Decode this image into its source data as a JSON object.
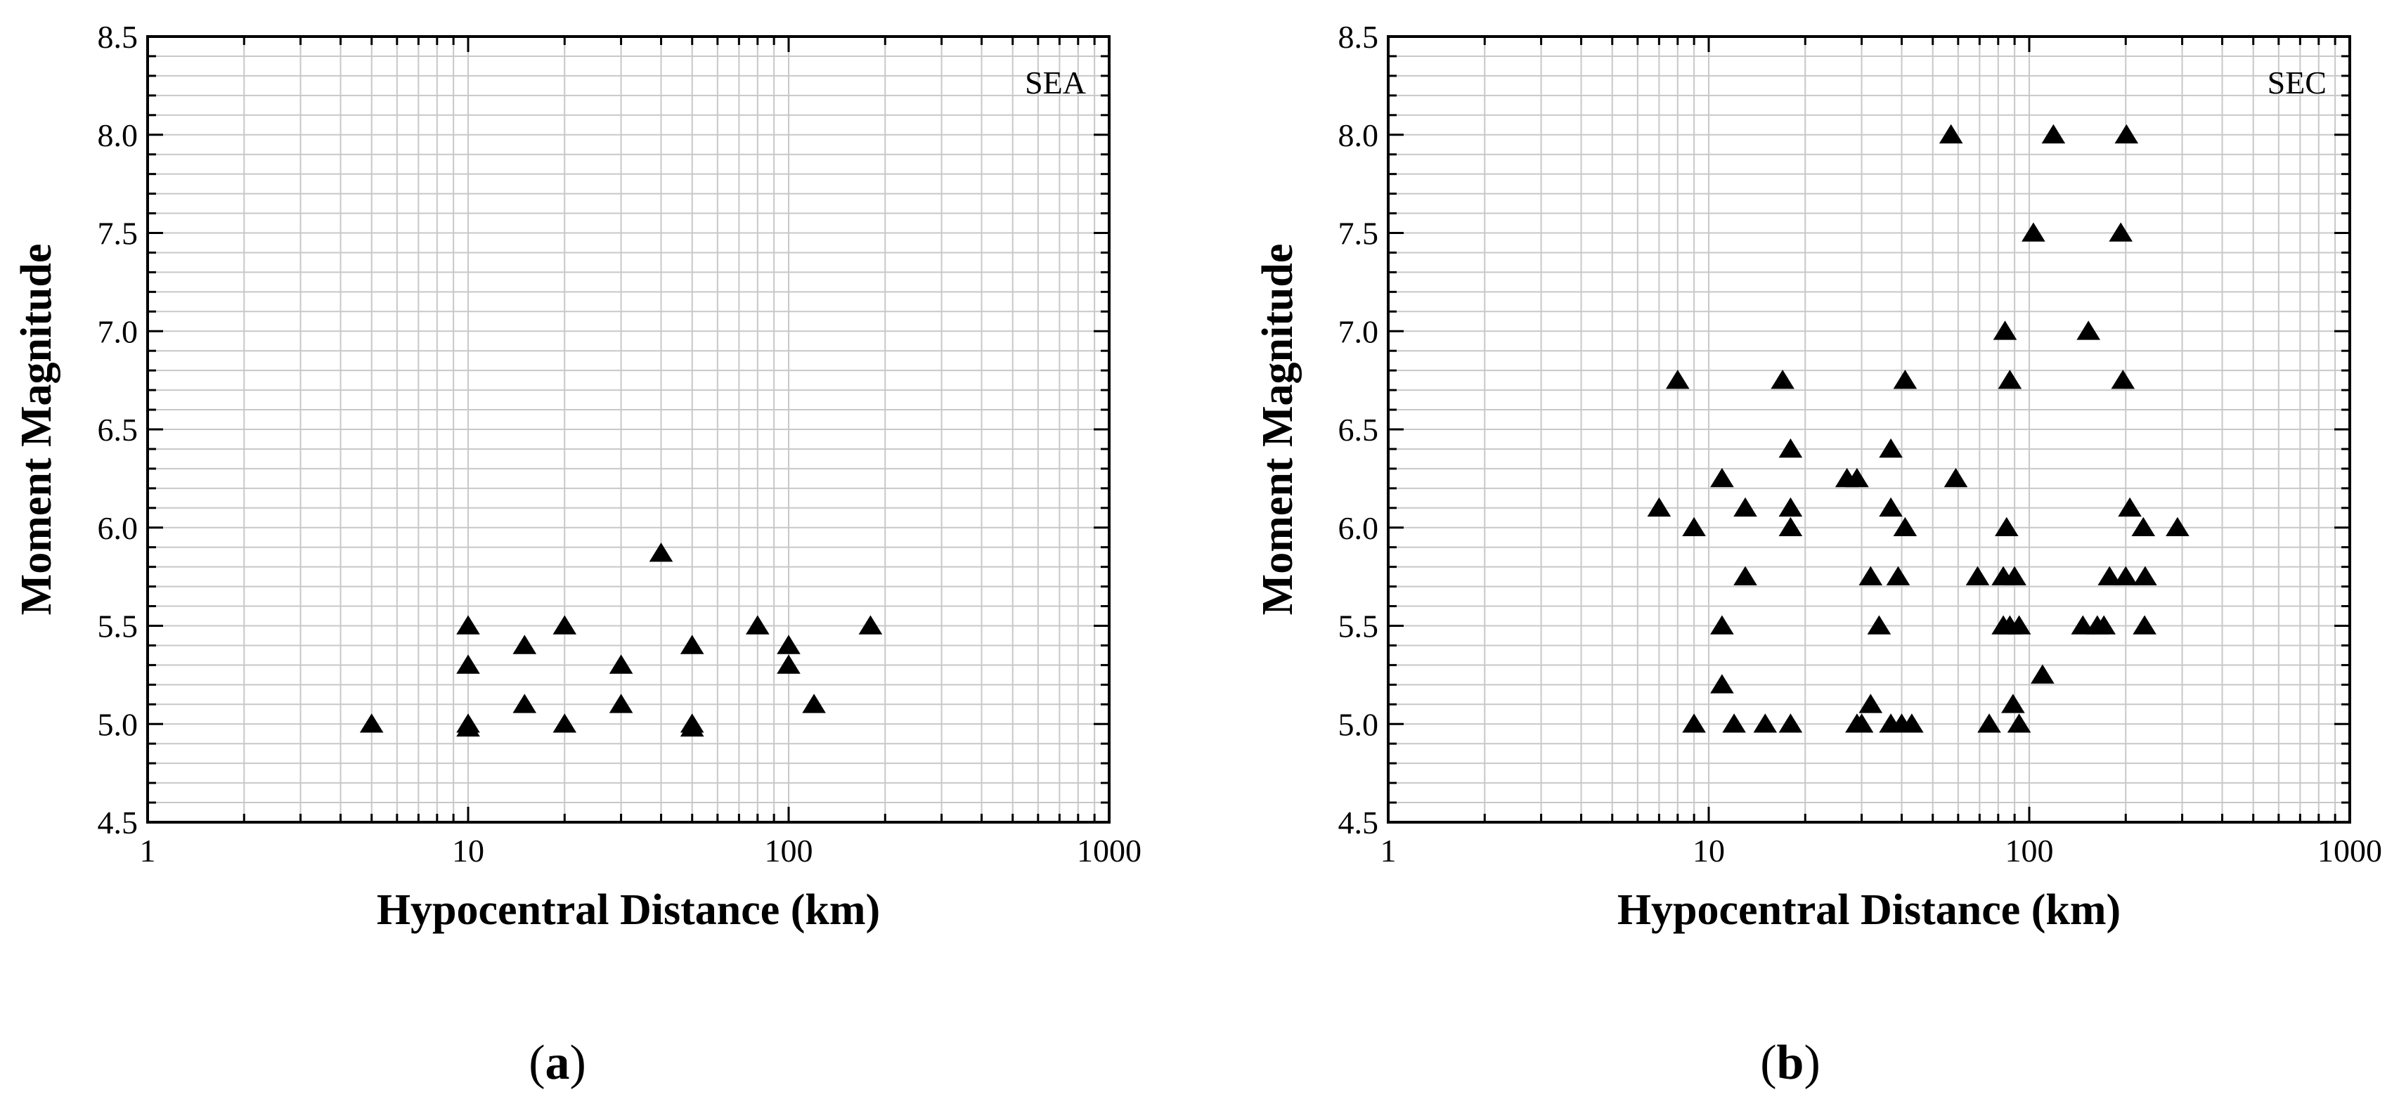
{
  "chart_data": [
    {
      "type": "scatter",
      "panel_caption": "(a)",
      "caption_letter": "a",
      "tag": "SEA",
      "xlabel": "Hypocentral Distance (km)",
      "ylabel": "Moment Magnitude",
      "xscale": "log",
      "xlim": [
        1,
        1000
      ],
      "ylim": [
        4.5,
        8.5
      ],
      "xticks": [
        1,
        10,
        100,
        1000
      ],
      "xtick_labels": [
        "1",
        "10",
        "100",
        "1000"
      ],
      "yticks": [
        4.5,
        5.0,
        5.5,
        6.0,
        6.5,
        7.0,
        7.5,
        8.0,
        8.5
      ],
      "ytick_labels": [
        "4.5",
        "5.0",
        "5.5",
        "6.0",
        "6.5",
        "7.0",
        "7.5",
        "8.0",
        "8.5"
      ],
      "grid": true,
      "marker": "filled-triangle",
      "x": [
        5,
        10,
        10,
        10,
        10,
        15,
        15,
        20,
        20,
        30,
        30,
        40,
        50,
        50,
        50,
        80,
        100,
        100,
        120,
        180
      ],
      "y": [
        5.0,
        5.5,
        5.3,
        5.0,
        4.98,
        5.4,
        5.1,
        5.5,
        5.0,
        5.3,
        5.1,
        5.87,
        5.4,
        5.0,
        4.98,
        5.5,
        5.4,
        5.3,
        5.1,
        5.5
      ]
    },
    {
      "type": "scatter",
      "panel_caption": "(b)",
      "caption_letter": "b",
      "tag": "SEC",
      "xlabel": "Hypocentral Distance (km)",
      "ylabel": "Moment Magnitude",
      "xscale": "log",
      "xlim": [
        1,
        1000
      ],
      "ylim": [
        4.5,
        8.5
      ],
      "xticks": [
        1,
        10,
        100,
        1000
      ],
      "xtick_labels": [
        "1",
        "10",
        "100",
        "1000"
      ],
      "yticks": [
        4.5,
        5.0,
        5.5,
        6.0,
        6.5,
        7.0,
        7.5,
        8.0,
        8.5
      ],
      "ytick_labels": [
        "4.5",
        "5.0",
        "5.5",
        "6.0",
        "6.5",
        "7.0",
        "7.5",
        "8.0",
        "8.5"
      ],
      "grid": true,
      "marker": "filled-triangle",
      "x": [
        7,
        8,
        9,
        9,
        11,
        11,
        11,
        12,
        13,
        13,
        15,
        17,
        18,
        18,
        18,
        18,
        27,
        29,
        29,
        30,
        32,
        32,
        34,
        37,
        37,
        37,
        39,
        40,
        41,
        41,
        43,
        57,
        59,
        69,
        75,
        83,
        83,
        84,
        85,
        87,
        87,
        89,
        90,
        93,
        93,
        103,
        110,
        119,
        147,
        153,
        163,
        171,
        178,
        193,
        196,
        200,
        201,
        206,
        227,
        229,
        230,
        290
      ],
      "y": [
        6.1,
        6.75,
        6.0,
        5.0,
        6.25,
        5.5,
        5.2,
        5.0,
        6.1,
        5.75,
        5.0,
        6.75,
        6.4,
        6.1,
        6.0,
        5.0,
        6.25,
        6.25,
        5.0,
        5.0,
        5.75,
        5.1,
        5.5,
        6.4,
        6.1,
        5.0,
        5.75,
        5.0,
        6.75,
        6.0,
        5.0,
        8.0,
        6.25,
        5.75,
        5.0,
        5.75,
        5.5,
        7.0,
        6.0,
        5.5,
        6.75,
        5.1,
        5.75,
        5.5,
        5.0,
        7.5,
        5.25,
        8.0,
        5.5,
        7.0,
        5.5,
        5.5,
        5.75,
        7.5,
        6.75,
        5.75,
        8.0,
        6.1,
        6.0,
        5.5,
        5.75,
        6.0
      ]
    }
  ]
}
